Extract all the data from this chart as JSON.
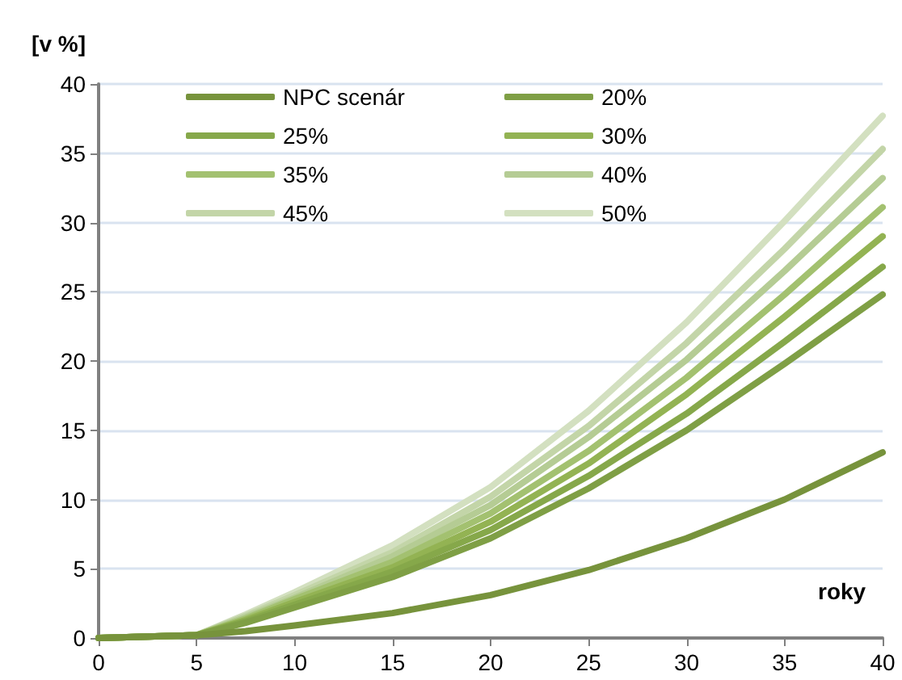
{
  "chart_data": {
    "type": "line",
    "xlabel": "roky",
    "ylabel": "[v %]",
    "x": [
      0,
      5,
      7.5,
      10,
      15,
      20,
      25,
      30,
      35,
      40
    ],
    "series": [
      {
        "name": "NPC scenár",
        "color": "#77933c",
        "values": [
          0,
          0.2,
          0.5,
          0.9,
          1.8,
          3.1,
          4.9,
          7.2,
          10,
          13.4
        ]
      },
      {
        "name": "20%",
        "color": "#7f9f45",
        "values": [
          0,
          0.2,
          1.1,
          2.2,
          4.4,
          7.2,
          10.8,
          15,
          19.8,
          24.8
        ]
      },
      {
        "name": "25%",
        "color": "#86a84a",
        "values": [
          0,
          0.2,
          1.2,
          2.4,
          4.8,
          7.8,
          11.7,
          16.2,
          21.4,
          26.8
        ]
      },
      {
        "name": "30%",
        "color": "#93b353",
        "values": [
          0,
          0.2,
          1.3,
          2.6,
          5.1,
          8.4,
          12.6,
          17.6,
          23.2,
          29
        ]
      },
      {
        "name": "35%",
        "color": "#a3c170",
        "values": [
          0,
          0.2,
          1.4,
          2.8,
          5.5,
          9,
          13.5,
          18.8,
          24.8,
          31.1
        ]
      },
      {
        "name": "40%",
        "color": "#b5cc94",
        "values": [
          0,
          0.2,
          1.5,
          2.9,
          5.9,
          9.6,
          14.5,
          20.1,
          26.5,
          33.2
        ]
      },
      {
        "name": "45%",
        "color": "#c3d5a8",
        "values": [
          0,
          0.2,
          1.6,
          3.1,
          6.2,
          10.2,
          15.3,
          21.3,
          28.1,
          35.3
        ]
      },
      {
        "name": "50%",
        "color": "#d3e0c0",
        "values": [
          0,
          0.2,
          1.7,
          3.3,
          6.7,
          10.9,
          16.4,
          22.8,
          30.1,
          37.7
        ]
      }
    ],
    "xlim": [
      0,
      40
    ],
    "xticks": [
      0,
      5,
      10,
      15,
      20,
      25,
      30,
      35,
      40
    ],
    "ylim": [
      0,
      40
    ],
    "yticks": [
      0,
      5,
      10,
      15,
      20,
      25,
      30,
      35,
      40
    ],
    "grid": "y",
    "legend": "top left",
    "marker": "none",
    "line_style": "solid"
  }
}
